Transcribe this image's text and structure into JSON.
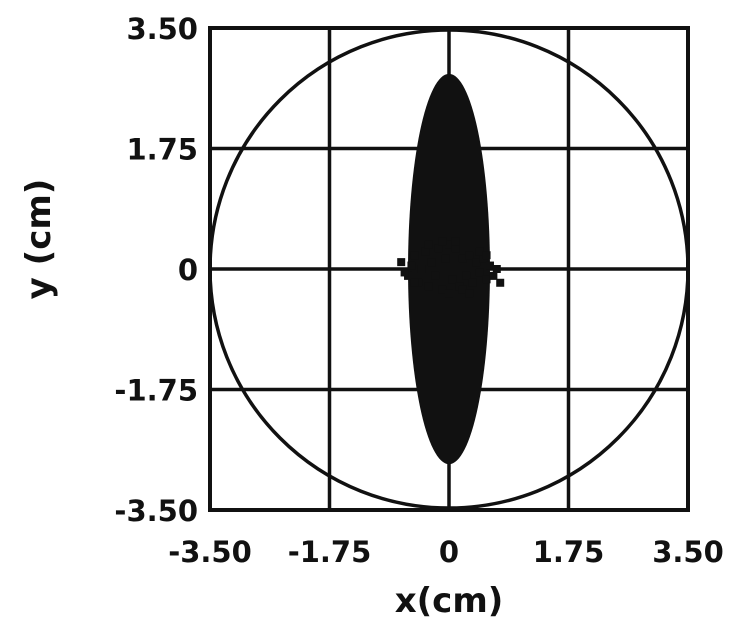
{
  "chart_data": {
    "type": "scatter",
    "title": "",
    "xlabel": "x(cm)",
    "ylabel": "y (cm)",
    "xlim": [
      -3.5,
      3.5
    ],
    "ylim": [
      -3.5,
      3.5
    ],
    "x_ticks": [
      -3.5,
      -1.75,
      0,
      1.75,
      3.5
    ],
    "y_ticks": [
      -3.5,
      -1.75,
      0,
      1.75,
      3.5
    ],
    "x_tick_labels": [
      "-3.50",
      "-1.75",
      "0",
      "1.75",
      "3.50"
    ],
    "y_tick_labels": [
      "-3.50",
      "-1.75",
      "0",
      "1.75",
      "3.50"
    ],
    "grid": true,
    "boundary_circle": {
      "center": [
        0,
        0
      ],
      "radius": 3.5
    },
    "series": [
      {
        "points": [
          [
            -0.7,
            0.1
          ],
          [
            -0.6,
            -0.1
          ],
          [
            -0.5,
            0.2
          ],
          [
            -0.45,
            -0.2
          ],
          [
            -0.4,
            0.0
          ],
          [
            -0.35,
            0.25
          ],
          [
            -0.3,
            -0.25
          ],
          [
            -0.25,
            0.1
          ],
          [
            -0.2,
            -0.1
          ],
          [
            -0.15,
            0.3
          ],
          [
            -0.1,
            -0.3
          ],
          [
            -0.05,
            0.15
          ],
          [
            0.0,
            0.0
          ],
          [
            0.0,
            0.35
          ],
          [
            0.0,
            -0.35
          ],
          [
            0.05,
            -0.15
          ],
          [
            0.1,
            0.3
          ],
          [
            0.15,
            -0.25
          ],
          [
            0.2,
            0.15
          ],
          [
            0.25,
            -0.1
          ],
          [
            0.3,
            0.2
          ],
          [
            0.35,
            -0.2
          ],
          [
            0.4,
            0.1
          ],
          [
            0.45,
            -0.05
          ],
          [
            0.5,
            0.15
          ],
          [
            0.55,
            -0.15
          ],
          [
            0.6,
            0.05
          ],
          [
            0.65,
            -0.1
          ],
          [
            0.7,
            0.0
          ],
          [
            0.75,
            -0.2
          ],
          [
            -0.65,
            -0.05
          ],
          [
            -0.55,
            0.05
          ],
          [
            0.1,
            0.4
          ],
          [
            -0.1,
            0.4
          ],
          [
            0.2,
            -0.3
          ],
          [
            0.45,
            0.25
          ],
          [
            -0.3,
            0.35
          ],
          [
            0.3,
            -0.35
          ],
          [
            0.55,
            0.2
          ],
          [
            -0.5,
            -0.2
          ]
        ]
      }
    ]
  }
}
